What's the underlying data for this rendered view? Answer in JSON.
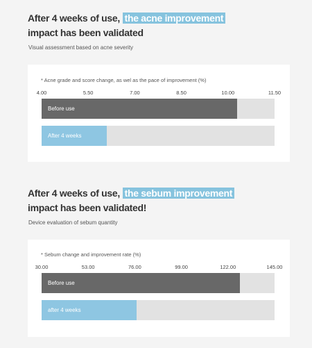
{
  "sections": [
    {
      "heading_pre": "After 4 weeks of use,",
      "heading_highlight": "the acne improvement",
      "heading_line2": "impact has been validated",
      "subtitle": "Visual assessment based on acne severity",
      "card_note": "* Acne grade and score change, as wel as the pace of improvement (%)"
    },
    {
      "heading_pre": "After 4 weeks of use,",
      "heading_highlight": "the sebum improvement",
      "heading_line2": "impact has been validated!",
      "subtitle": "Device evaluation of sebum quantity",
      "card_note": "* Sebum change and improvement rate (%)"
    }
  ],
  "colors": {
    "highlight": "#86c3de",
    "before_bar": "#686868",
    "after_bar": "#8ec6e2",
    "track": "#e2e2e2"
  },
  "chart_data": [
    {
      "type": "bar",
      "orientation": "horizontal",
      "categories": [
        "Before use",
        "After 4 weeks"
      ],
      "values": [
        10.3,
        6.1
      ],
      "xlim": [
        4.0,
        11.5
      ],
      "ticks": [
        "4.00",
        "5.50",
        "7.00",
        "8.50",
        "10.00",
        "11.50"
      ],
      "colors": [
        "#686868",
        "#8ec6e2"
      ]
    },
    {
      "type": "bar",
      "orientation": "horizontal",
      "categories": [
        "Before use",
        "after 4 weeks"
      ],
      "values": [
        128,
        77
      ],
      "xlim": [
        30.0,
        145.0
      ],
      "ticks": [
        "30.00",
        "53.00",
        "76.00",
        "99.00",
        "122.00",
        "145.00"
      ],
      "colors": [
        "#686868",
        "#8ec6e2"
      ]
    }
  ]
}
